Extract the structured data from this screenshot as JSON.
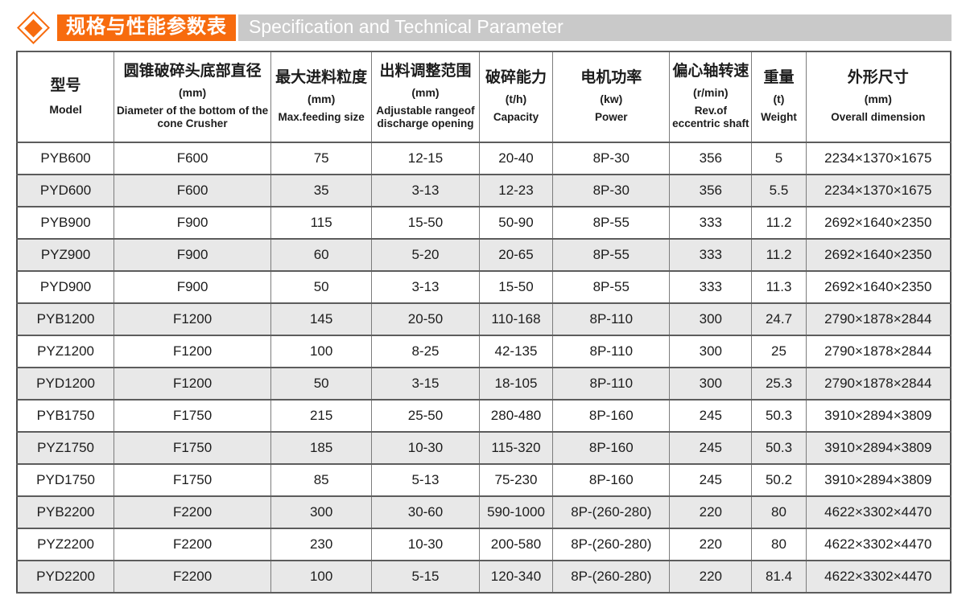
{
  "header": {
    "title_cn": "规格与性能参数表",
    "title_en": "Specification and Technical Parameter"
  },
  "colors": {
    "accent_orange": "#f76b0e",
    "title_en_bar": "#c9c9c9",
    "row_stripe": "#e8e8e8",
    "grid_line": "#5c5c5c"
  },
  "icons": {
    "diamond_icon": "orange outlined diamond with solid orange center"
  },
  "table": {
    "columns": [
      {
        "cn": "型号",
        "unit": "",
        "en": "Model"
      },
      {
        "cn": "圆锥破碎头底部直径",
        "unit": "(mm)",
        "en": "Diameter of the bottom of the cone Crusher"
      },
      {
        "cn": "最大进料粒度",
        "unit": "(mm)",
        "en": "Max.feeding size"
      },
      {
        "cn": "出料调整范围",
        "unit": "(mm)",
        "en": "Adjustable rangeof discharge opening"
      },
      {
        "cn": "破碎能力",
        "unit": "(t/h)",
        "en": "Capacity"
      },
      {
        "cn": "电机功率",
        "unit": "(kw)",
        "en": "Power"
      },
      {
        "cn": "偏心轴转速",
        "unit": "(r/min)",
        "en": "Rev.of eccentric shaft"
      },
      {
        "cn": "重量",
        "unit": "(t)",
        "en": "Weight"
      },
      {
        "cn": "外形尺寸",
        "unit": "(mm)",
        "en": "Overall dimension"
      }
    ],
    "rows": [
      [
        "PYB600",
        "F600",
        "75",
        "12-15",
        "20-40",
        "8P-30",
        "356",
        "5",
        "2234×1370×1675"
      ],
      [
        "PYD600",
        "F600",
        "35",
        "3-13",
        "12-23",
        "8P-30",
        "356",
        "5.5",
        "2234×1370×1675"
      ],
      [
        "PYB900",
        "F900",
        "115",
        "15-50",
        "50-90",
        "8P-55",
        "333",
        "11.2",
        "2692×1640×2350"
      ],
      [
        "PYZ900",
        "F900",
        "60",
        "5-20",
        "20-65",
        "8P-55",
        "333",
        "11.2",
        "2692×1640×2350"
      ],
      [
        "PYD900",
        "F900",
        "50",
        "3-13",
        "15-50",
        "8P-55",
        "333",
        "11.3",
        "2692×1640×2350"
      ],
      [
        "PYB1200",
        "F1200",
        "145",
        "20-50",
        "110-168",
        "8P-110",
        "300",
        "24.7",
        "2790×1878×2844"
      ],
      [
        "PYZ1200",
        "F1200",
        "100",
        "8-25",
        "42-135",
        "8P-110",
        "300",
        "25",
        "2790×1878×2844"
      ],
      [
        "PYD1200",
        "F1200",
        "50",
        "3-15",
        "18-105",
        "8P-110",
        "300",
        "25.3",
        "2790×1878×2844"
      ],
      [
        "PYB1750",
        "F1750",
        "215",
        "25-50",
        "280-480",
        "8P-160",
        "245",
        "50.3",
        "3910×2894×3809"
      ],
      [
        "PYZ1750",
        "F1750",
        "185",
        "10-30",
        "115-320",
        "8P-160",
        "245",
        "50.3",
        "3910×2894×3809"
      ],
      [
        "PYD1750",
        "F1750",
        "85",
        "5-13",
        "75-230",
        "8P-160",
        "245",
        "50.2",
        "3910×2894×3809"
      ],
      [
        "PYB2200",
        "F2200",
        "300",
        "30-60",
        "590-1000",
        "8P-(260-280)",
        "220",
        "80",
        "4622×3302×4470"
      ],
      [
        "PYZ2200",
        "F2200",
        "230",
        "10-30",
        "200-580",
        "8P-(260-280)",
        "220",
        "80",
        "4622×3302×4470"
      ],
      [
        "PYD2200",
        "F2200",
        "100",
        "5-15",
        "120-340",
        "8P-(260-280)",
        "220",
        "81.4",
        "4622×3302×4470"
      ]
    ]
  }
}
